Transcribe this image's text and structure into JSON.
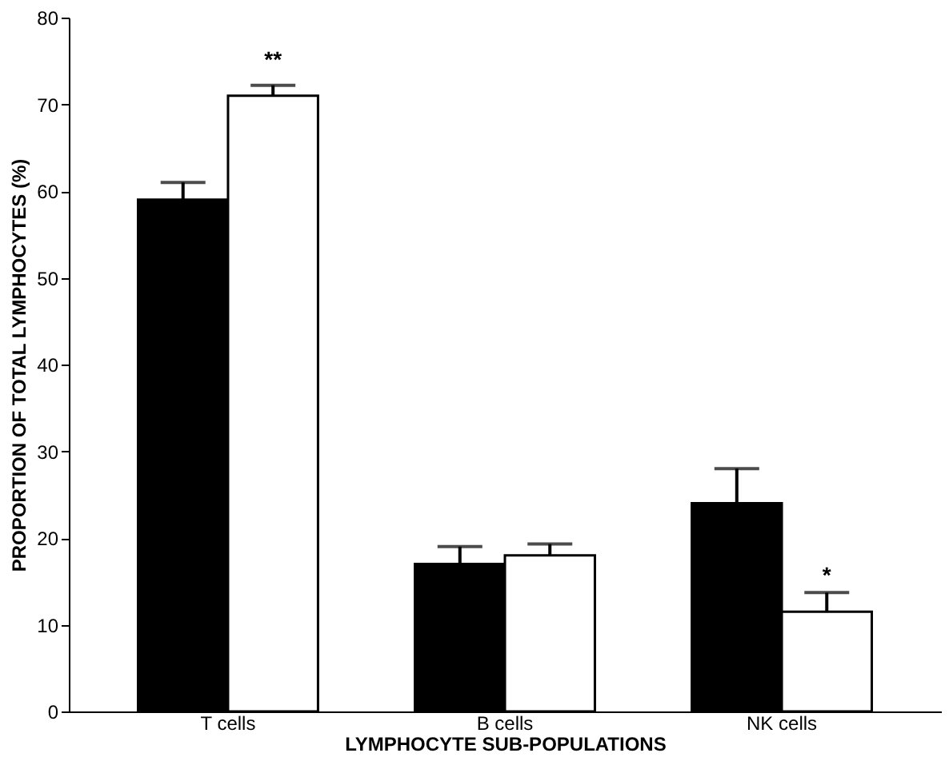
{
  "chart_data": {
    "type": "bar",
    "xlabel": "LYMPHOCYTE SUB-POPULATIONS",
    "ylabel": "PROPORTION OF TOTAL LYMPHOCYTES (%)",
    "categories": [
      "T cells",
      "B cells",
      "NK cells"
    ],
    "series": [
      {
        "color": "#000000",
        "values": [
          59,
          17,
          24
        ],
        "errors": [
          [
            59,
            61
          ],
          [
            17,
            19
          ],
          [
            24,
            28
          ]
        ]
      },
      {
        "color": "#ffffff",
        "values": [
          71,
          18,
          11.5
        ],
        "errors": [
          [
            71,
            72.2
          ],
          [
            18,
            19.3
          ],
          [
            11.5,
            13.7
          ]
        ]
      }
    ],
    "ylim": [
      0,
      80
    ],
    "yticks": [
      0,
      10,
      20,
      30,
      40,
      50,
      60,
      70,
      80
    ],
    "annotations": [
      {
        "text": "**",
        "x": "T cells",
        "y": 71
      },
      {
        "text": "*",
        "x": "NK cells",
        "y": 11.5
      }
    ],
    "grid": false,
    "legend": false
  }
}
